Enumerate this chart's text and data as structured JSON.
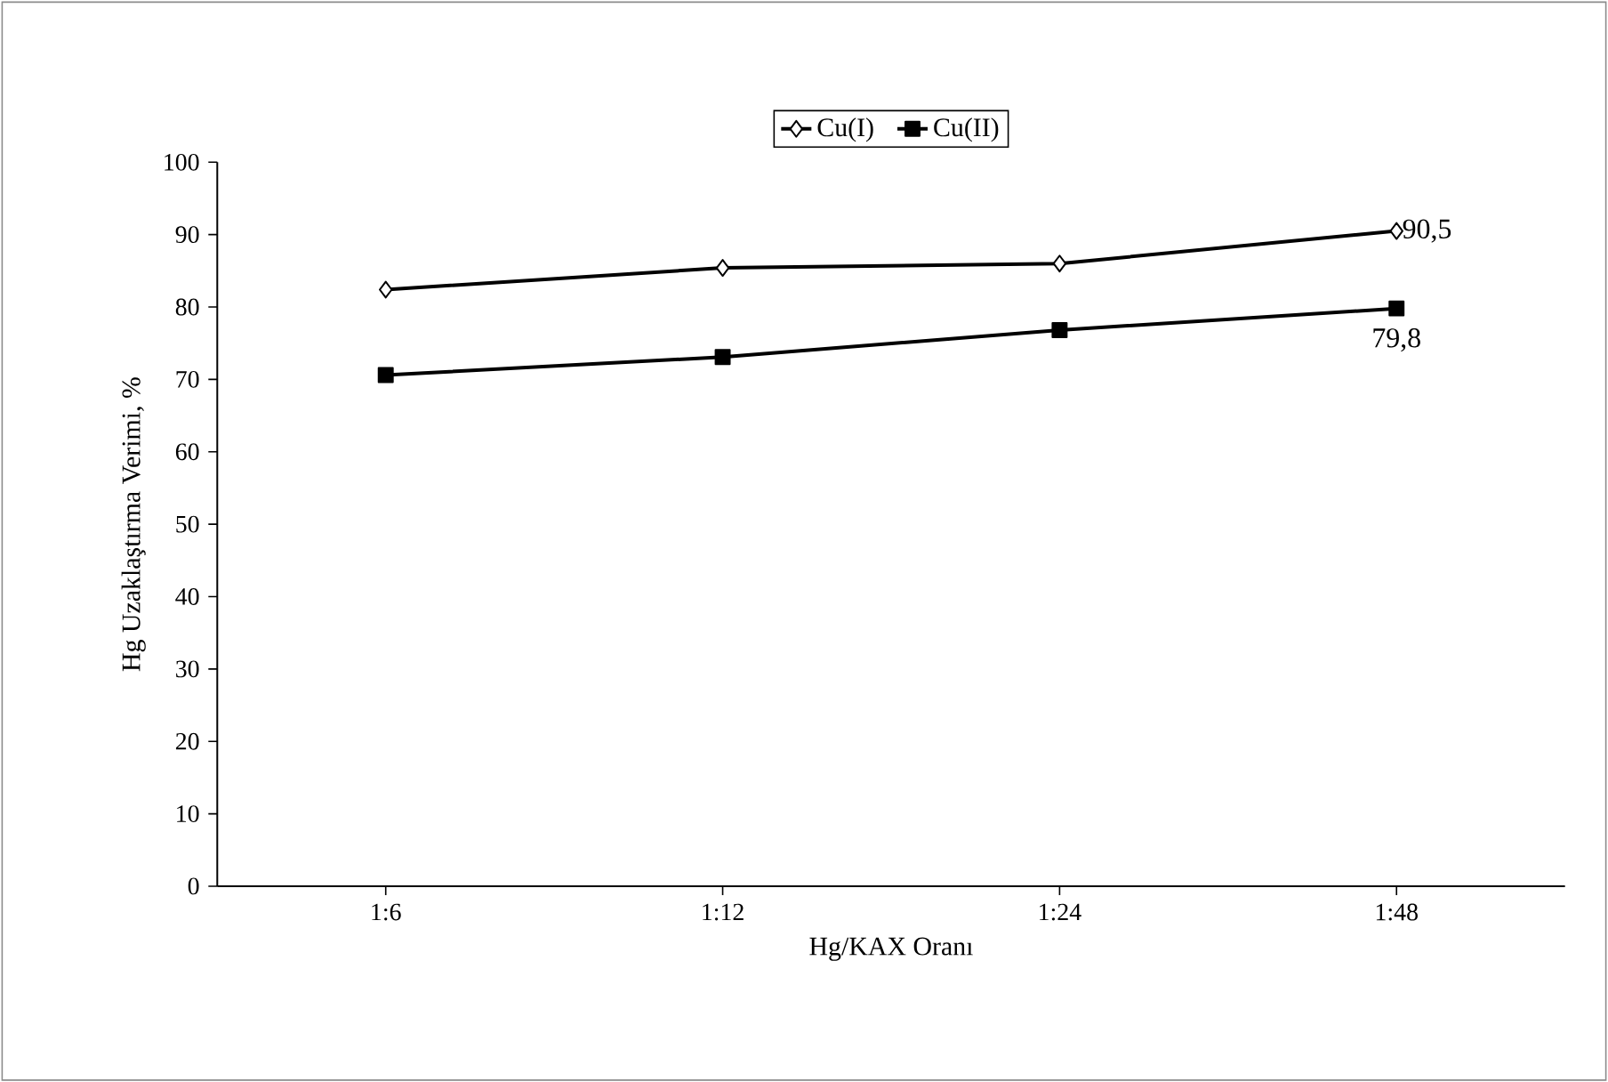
{
  "chart_data": {
    "type": "line",
    "xlabel": "Hg/KAX Oranı",
    "ylabel": "Hg Uzaklaştırma Verimi, %",
    "categories": [
      "1:6",
      "1:12",
      "1:24",
      "1:48"
    ],
    "series": [
      {
        "name": "Cu(I)",
        "color": "#000000",
        "marker": "diamond",
        "values": [
          82.4,
          85.4,
          86,
          90.5
        ],
        "value_labels": [
          null,
          null,
          null,
          "90,5"
        ]
      },
      {
        "name": "Cu(II)",
        "color": "#000000",
        "marker": "square",
        "values": [
          70.6,
          73.1,
          76.8,
          79.8
        ],
        "value_labels": [
          null,
          null,
          null,
          "79,8"
        ]
      }
    ],
    "ylim": [
      0,
      100
    ],
    "yticks": [
      0,
      10,
      20,
      30,
      40,
      50,
      60,
      70,
      80,
      90,
      100
    ],
    "grid": false,
    "legend": "top",
    "line_style": "solid"
  }
}
